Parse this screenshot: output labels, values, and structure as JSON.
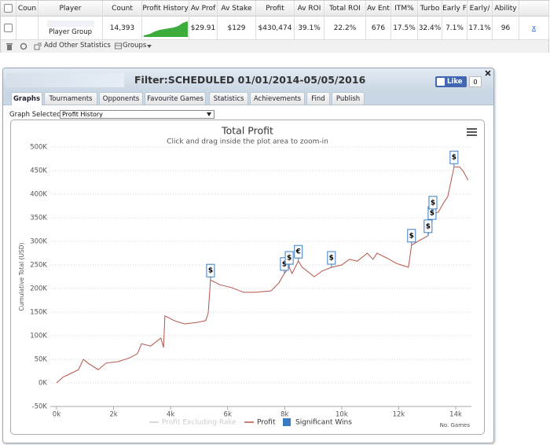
{
  "table": {
    "headers": [
      "Coun",
      "Player",
      "Count",
      "Profit History",
      "Av Prof",
      "Av Stake",
      "Profit",
      "Av ROI",
      "Total ROI",
      "Av Ent",
      "ITM%",
      "Turbo",
      "Early F",
      "Early/",
      "Ability"
    ],
    "row": {
      "player": "Player Group",
      "count": "14,393",
      "stats": [
        "$29.91",
        "$129",
        "$430,474",
        "39.1%",
        "22.2%",
        "676",
        "17.5%",
        "32.4%",
        "7.1%",
        "17.1%",
        "96"
      ],
      "remove": "x"
    }
  },
  "toolbar": {
    "add": "Add Other Statistics",
    "groups": "Groups"
  },
  "panel": {
    "title": "Filter:SCHEDULED 01/01/2014-05/05/2016",
    "like": "Like",
    "like_count": "0",
    "tabs": [
      "Graphs",
      "Tournaments",
      "Opponents",
      "Favourite Games",
      "Statistics",
      "Achievements",
      "Find",
      "Publish"
    ],
    "graph_selected_label": "Graph Selected:",
    "graph_selected": "Profit History"
  },
  "chart_data": {
    "type": "line",
    "title": "Total Profit",
    "subtitle": "Click and drag inside the plot area to zoom-in",
    "ylabel": "Cumulative Total (USD)",
    "xlabel": "No. Games",
    "xlim": [
      -220,
      14550
    ],
    "ylim": [
      -50000,
      500000
    ],
    "xticks": [
      {
        "value": 0,
        "label": "0k"
      },
      {
        "value": 2000,
        "label": "2k"
      },
      {
        "value": 4000,
        "label": "4k"
      },
      {
        "value": 6000,
        "label": "6k"
      },
      {
        "value": 8000,
        "label": "8k"
      },
      {
        "value": 10000,
        "label": "10k"
      },
      {
        "value": 12000,
        "label": "12k"
      },
      {
        "value": 14000,
        "label": "14k"
      }
    ],
    "yticks": [
      {
        "value": -50000,
        "label": "-50K"
      },
      {
        "value": 0,
        "label": "0K"
      },
      {
        "value": 50000,
        "label": "50K"
      },
      {
        "value": 100000,
        "label": "100K"
      },
      {
        "value": 150000,
        "label": "150K"
      },
      {
        "value": 200000,
        "label": "200K"
      },
      {
        "value": 250000,
        "label": "250K"
      },
      {
        "value": 300000,
        "label": "300K"
      },
      {
        "value": 350000,
        "label": "350K"
      },
      {
        "value": 400000,
        "label": "400K"
      },
      {
        "value": 450000,
        "label": "450K"
      },
      {
        "value": 500000,
        "label": "500K"
      }
    ],
    "grid": true,
    "series": [
      {
        "name": "Profit Excluding Rake",
        "color": "#cccccc",
        "visible": false
      },
      {
        "name": "Profit",
        "color": "#b5534a",
        "visible": true,
        "x": [
          0,
          220,
          500,
          770,
          940,
          1100,
          1460,
          1740,
          2150,
          2560,
          2840,
          2980,
          3300,
          3660,
          3750,
          3800,
          4130,
          4490,
          4900,
          5230,
          5320,
          5400,
          5730,
          6140,
          6560,
          6970,
          7520,
          7800,
          7990,
          8160,
          8260,
          8480,
          8620,
          9040,
          9310,
          9640,
          10000,
          10270,
          10550,
          10900,
          11100,
          11240,
          11570,
          11930,
          12340,
          12450,
          12760,
          13030,
          13170,
          13390,
          13580,
          13720,
          13940,
          14130,
          14270,
          14430
        ],
        "values": [
          0,
          12000,
          20000,
          28000,
          50000,
          42000,
          28000,
          42000,
          45000,
          53000,
          62000,
          83000,
          78000,
          95000,
          75000,
          142000,
          132000,
          125000,
          128000,
          132000,
          148000,
          218000,
          208000,
          202000,
          192000,
          192000,
          195000,
          212000,
          232000,
          245000,
          232000,
          258000,
          245000,
          225000,
          237000,
          245000,
          250000,
          262000,
          258000,
          275000,
          262000,
          275000,
          265000,
          253000,
          245000,
          292000,
          303000,
          312000,
          358000,
          362000,
          382000,
          395000,
          458000,
          458000,
          448000,
          430000
        ]
      },
      {
        "name": "Significant Wins",
        "color": "#3a7cc4",
        "visible": true,
        "x": [
          5400,
          7990,
          8160,
          8480,
          9640,
          12450,
          13030,
          13170,
          13200,
          13940
        ],
        "values": [
          218000,
          232000,
          245000,
          258000,
          245000,
          292000,
          312000,
          340000,
          362000,
          458000
        ],
        "labels": [
          "$",
          "$",
          "$",
          "€",
          "$",
          "$",
          "$",
          "$",
          "$",
          "$"
        ]
      }
    ]
  }
}
